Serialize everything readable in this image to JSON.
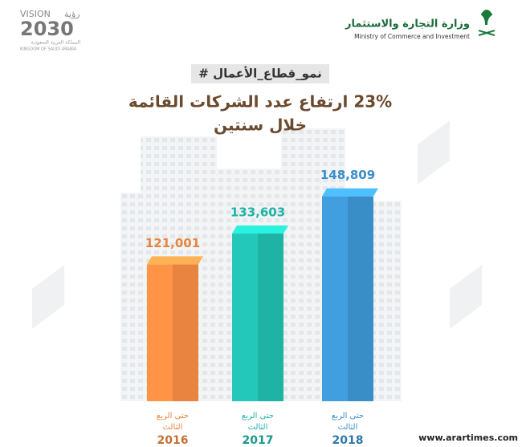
{
  "chart_data": {
    "type": "bar",
    "ministry_ar": "وزارة التجارة والاستثمار",
    "ministry_en": "Ministry of Commerce and Investment",
    "vision_word": "VISION",
    "vision_ar": "رؤية",
    "vision_year": "2030",
    "kingdom_ar": "المملكة العربية السعودية",
    "kingdom_en": "KINGDOM OF SAUDI ARABIA",
    "hashtag": "# نمو_قطاع_الأعمال",
    "title": "23% ارتفاع عدد الشركات القائمة",
    "subtitle": "خلال سنتين",
    "period_lines": [
      "حتى الربع",
      "الثالث"
    ],
    "categories": [
      "2016",
      "2017",
      "2018"
    ],
    "values": [
      121001,
      133603,
      148809
    ],
    "value_labels": [
      "121,001",
      "133,603",
      "148,809"
    ],
    "colors": [
      "#e8843f",
      "#1fb3a6",
      "#3a8ec8"
    ],
    "ylim": [
      65000,
      150000
    ],
    "watermark": "www.arartimes.com"
  }
}
